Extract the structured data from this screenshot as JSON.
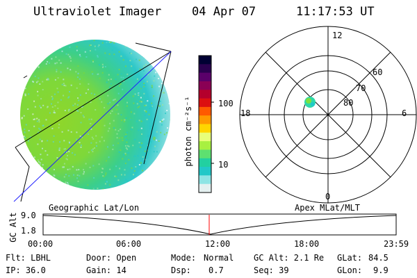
{
  "header": {
    "instrument": "Ultraviolet Imager",
    "date": "04 Apr 07",
    "time": "11:17:53 UT"
  },
  "colorbar": {
    "unit_label": "photon cm⁻²s⁻¹",
    "ticks": [
      "100",
      "10"
    ],
    "colors_top_to_bottom": [
      "#000033",
      "#2a004f",
      "#5a006a",
      "#8a0055",
      "#b4002c",
      "#dc1010",
      "#ff5a00",
      "#ff9a00",
      "#ffd600",
      "#e8ff7a",
      "#a8f040",
      "#5ee070",
      "#22d0a0",
      "#22c8c8",
      "#8ee4e4",
      "#e4f0f0"
    ]
  },
  "polar": {
    "hour_labels": {
      "top": "12",
      "left": "18",
      "right": "6",
      "bottom": "0"
    },
    "lat_labels": [
      "60",
      "70",
      "80"
    ]
  },
  "timeline": {
    "left_title": "Geographic Lat/Lon",
    "right_title": "Apex MLat/MLT",
    "axis_label": "GC Alt",
    "y_ticks": [
      "9.0",
      "1.8"
    ],
    "x_ticks": [
      "00:00",
      "06:00",
      "12:00",
      "18:00",
      "23:59"
    ]
  },
  "status": {
    "flt": "Flt: LBHL",
    "ip": "IP: 36.0",
    "door": "Door: Open",
    "gain": "Gain: 14",
    "mode_label": "Mode:",
    "mode_value": "Normal",
    "dsp_label": "Dsp:",
    "dsp_value": "0.7",
    "gc_alt": "GC Alt: 2.1 Re",
    "seq": "Seq: 39",
    "glat_label": "GLat:",
    "glat_value": "84.5",
    "glon_label": "GLon:",
    "glon_value": "9.9"
  }
}
